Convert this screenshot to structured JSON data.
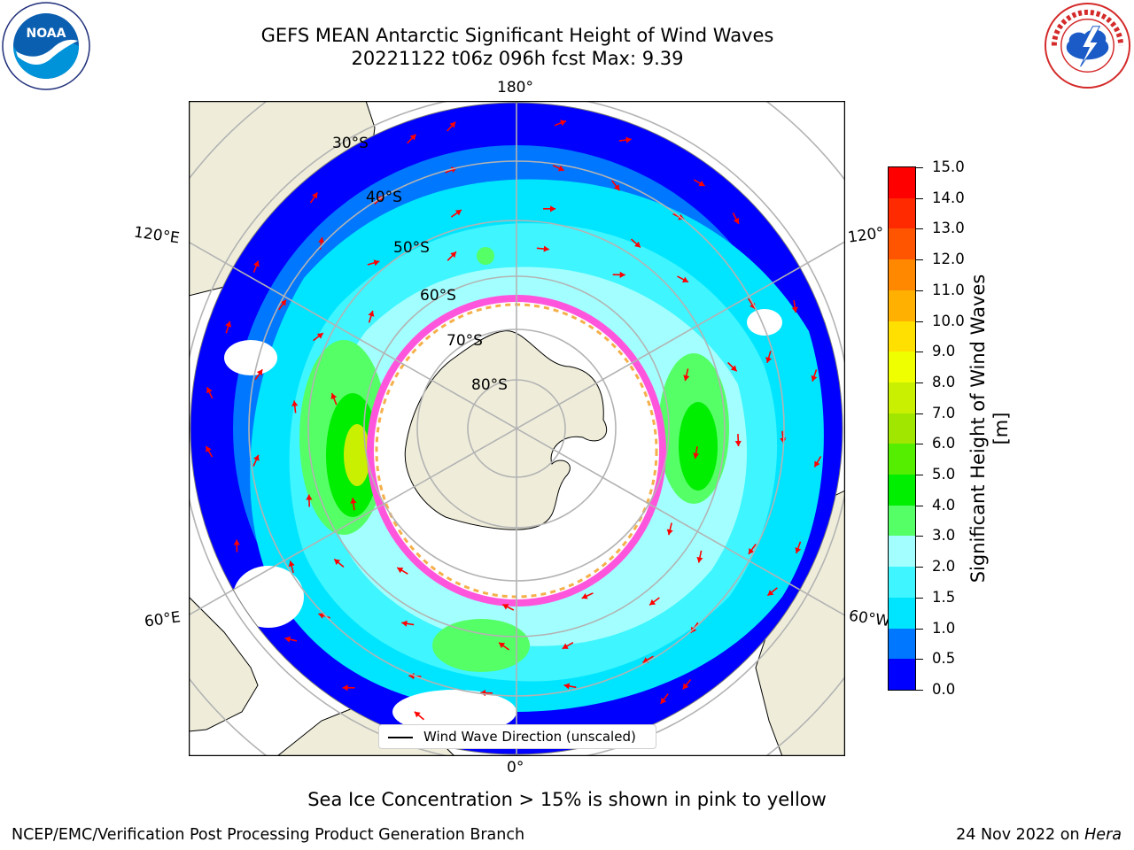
{
  "header": {
    "title_line1": "GEFS MEAN Antarctic Significant Height of Wind Waves",
    "title_line2": "20221122 t06z 096h fcst   Max: 9.39"
  },
  "logos": {
    "noaa_text": "NOAA",
    "noaa_ring": "NATIONAL OCEANIC AND ATMOSPHERIC ADMINISTRATION · U.S. DEPARTMENT OF COMMERCE",
    "nws_ring": "NATIONAL WEATHER SERVICE"
  },
  "map": {
    "projection": "south-polar-stereographic",
    "longitude_labels": {
      "top": "180°",
      "bottom": "0°",
      "left_upper": "120°E",
      "right_upper": "120°",
      "left_lower": "60°E",
      "right_lower": "60°W"
    },
    "latitude_labels": [
      "30°S",
      "40°S",
      "50°S",
      "60°S",
      "70°S",
      "80°S"
    ],
    "legend_label": "Wind Wave Direction (unscaled)",
    "colors": {
      "land": "#efedda",
      "sea_ice": "#ffffff",
      "arrows": "#ff0000",
      "grid": "#b3b3b3"
    }
  },
  "colorbar": {
    "label": "Significant Height of Wind Waves [m]",
    "ticks": [
      "0.0",
      "0.5",
      "1.0",
      "1.5",
      "2.0",
      "3.0",
      "4.0",
      "5.0",
      "6.0",
      "7.0",
      "8.0",
      "9.0",
      "10.0",
      "11.0",
      "12.0",
      "13.0",
      "14.0",
      "15.0"
    ],
    "colors": [
      "#0000ff",
      "#0077ff",
      "#00e5ff",
      "#3ff5ff",
      "#a3ffff",
      "#55ff66",
      "#00ee00",
      "#55ee00",
      "#a0e600",
      "#c8f000",
      "#f0ff00",
      "#ffe000",
      "#ffb000",
      "#ff8800",
      "#ff5500",
      "#ff2a00",
      "#ff0000"
    ]
  },
  "subtitle": "Sea Ice Concentration > 15% is shown in pink to yellow",
  "footer": {
    "left": "NCEP/EMC/Verification Post Processing Product Generation Branch",
    "date": "24 Nov 2022 on",
    "machine": "Hera"
  }
}
